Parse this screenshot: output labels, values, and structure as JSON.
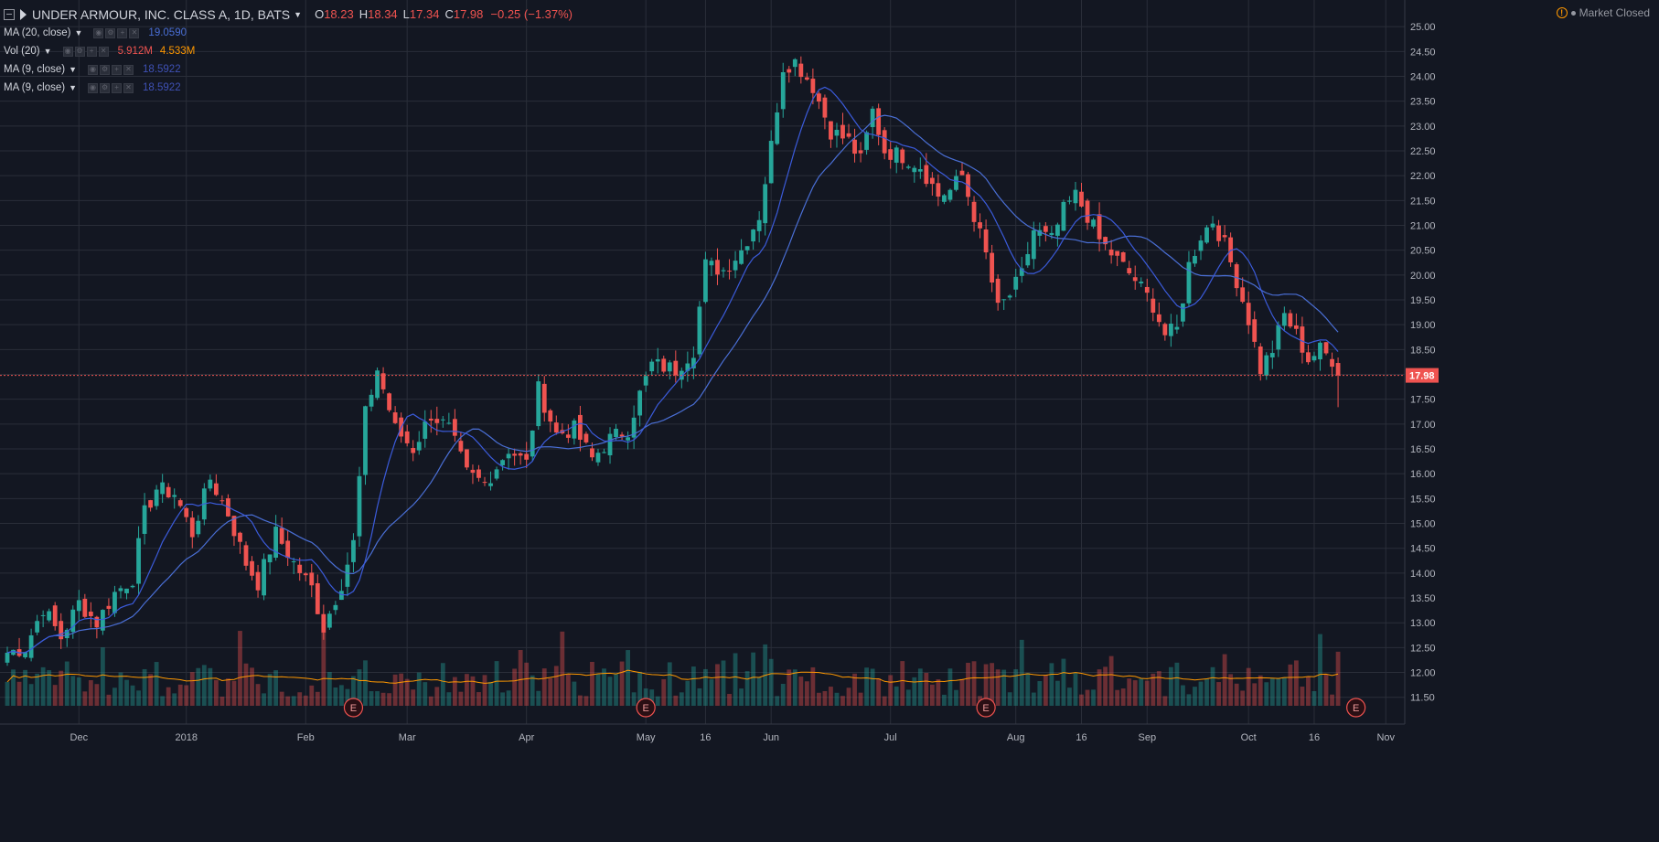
{
  "header": {
    "symbol_title": "UNDER ARMOUR, INC. CLASS A, 1D, BATS",
    "open_label": "O",
    "open": "18.23",
    "high_label": "H",
    "high": "18.34",
    "low_label": "L",
    "low": "17.34",
    "close_label": "C",
    "close": "17.98",
    "change": "−0.25 (−1.37%)",
    "market_status": "Market Closed"
  },
  "indicators": [
    {
      "name": "MA (20, close)",
      "value": "19.0590",
      "color": "#4a6fd6"
    },
    {
      "name": "Vol (20)",
      "value": "5.912M",
      "value2": "4.533M",
      "color": "#ef5350",
      "color2": "#ff9800"
    },
    {
      "name": "MA (9, close)",
      "value": "18.5922",
      "color": "#3f51b5"
    },
    {
      "name": "MA (9, close)",
      "value": "18.5922",
      "color": "#3f51b5"
    }
  ],
  "colors": {
    "background": "#131722",
    "grid": "#2a2e39",
    "up": "#26a69a",
    "down": "#ef5350",
    "ma20": "#4a6fd6",
    "ma9": "#3b5bdb",
    "vol_ma": "#ff9800",
    "axis_text": "#b2b5be"
  },
  "chart_data": {
    "type": "candlestick",
    "title": "UNDER ARMOUR, INC. CLASS A, 1D, BATS",
    "ylim": [
      11.2,
      25.15
    ],
    "y_ticks": [
      "25.00",
      "24.50",
      "24.00",
      "23.50",
      "23.00",
      "22.50",
      "22.00",
      "21.50",
      "21.00",
      "20.50",
      "20.00",
      "19.50",
      "19.00",
      "18.50",
      "18.00",
      "17.50",
      "17.00",
      "16.50",
      "16.00",
      "15.50",
      "15.00",
      "14.50",
      "14.00",
      "13.50",
      "13.00",
      "12.50",
      "12.00",
      "11.50"
    ],
    "x_ticks": [
      {
        "label": "Dec",
        "bar": 12
      },
      {
        "label": "2018",
        "bar": 30
      },
      {
        "label": "Feb",
        "bar": 50
      },
      {
        "label": "Mar",
        "bar": 67
      },
      {
        "label": "Apr",
        "bar": 87
      },
      {
        "label": "May",
        "bar": 107
      },
      {
        "label": "16",
        "bar": 117
      },
      {
        "label": "Jun",
        "bar": 128
      },
      {
        "label": "Jul",
        "bar": 148
      },
      {
        "label": "Aug",
        "bar": 169
      },
      {
        "label": "16",
        "bar": 180
      },
      {
        "label": "Sep",
        "bar": 191
      },
      {
        "label": "Oct",
        "bar": 208
      },
      {
        "label": "16",
        "bar": 219
      },
      {
        "label": "Nov",
        "bar": 231
      }
    ],
    "last_price": "17.98",
    "earnings": [
      {
        "bar": 58,
        "label": "E"
      },
      {
        "bar": 107,
        "label": "E"
      },
      {
        "bar": 164,
        "label": "E"
      },
      {
        "bar": 226,
        "label": "E"
      }
    ],
    "anchors": [
      [
        0,
        12.4
      ],
      [
        3,
        12.5
      ],
      [
        6,
        13.3
      ],
      [
        9,
        12.7
      ],
      [
        12,
        13.4
      ],
      [
        15,
        13.0
      ],
      [
        18,
        13.6
      ],
      [
        21,
        13.9
      ],
      [
        23,
        15.2
      ],
      [
        25,
        15.7
      ],
      [
        28,
        15.6
      ],
      [
        31,
        14.8
      ],
      [
        34,
        15.9
      ],
      [
        37,
        15.2
      ],
      [
        40,
        14.2
      ],
      [
        42,
        13.8
      ],
      [
        45,
        14.8
      ],
      [
        48,
        14.2
      ],
      [
        51,
        13.7
      ],
      [
        53,
        12.9
      ],
      [
        56,
        13.8
      ],
      [
        58,
        14.6
      ],
      [
        60,
        17.2
      ],
      [
        62,
        18.1
      ],
      [
        65,
        16.9
      ],
      [
        68,
        16.5
      ],
      [
        71,
        17.2
      ],
      [
        74,
        16.9
      ],
      [
        77,
        16.0
      ],
      [
        80,
        15.8
      ],
      [
        84,
        16.5
      ],
      [
        87,
        16.2
      ],
      [
        89,
        17.7
      ],
      [
        92,
        16.8
      ],
      [
        95,
        16.9
      ],
      [
        98,
        16.3
      ],
      [
        101,
        16.7
      ],
      [
        104,
        16.9
      ],
      [
        106,
        17.6
      ],
      [
        108,
        18.2
      ],
      [
        112,
        18.1
      ],
      [
        115,
        18.5
      ],
      [
        117,
        20.2
      ],
      [
        120,
        20.1
      ],
      [
        123,
        20.5
      ],
      [
        126,
        21.2
      ],
      [
        128,
        22.6
      ],
      [
        130,
        24.2
      ],
      [
        132,
        24.3
      ],
      [
        135,
        23.8
      ],
      [
        138,
        22.9
      ],
      [
        141,
        22.7
      ],
      [
        143,
        22.3
      ],
      [
        145,
        23.3
      ],
      [
        147,
        22.5
      ],
      [
        150,
        22.4
      ],
      [
        153,
        22.2
      ],
      [
        156,
        21.6
      ],
      [
        158,
        21.7
      ],
      [
        160,
        22.0
      ],
      [
        162,
        21.2
      ],
      [
        164,
        20.4
      ],
      [
        166,
        19.3
      ],
      [
        168,
        19.6
      ],
      [
        170,
        20.0
      ],
      [
        172,
        20.9
      ],
      [
        175,
        20.7
      ],
      [
        177,
        21.3
      ],
      [
        179,
        21.6
      ],
      [
        181,
        21.2
      ],
      [
        183,
        20.7
      ],
      [
        186,
        20.3
      ],
      [
        189,
        19.9
      ],
      [
        192,
        19.4
      ],
      [
        194,
        18.8
      ],
      [
        196,
        18.9
      ],
      [
        198,
        20.2
      ],
      [
        200,
        20.8
      ],
      [
        202,
        21.1
      ],
      [
        204,
        20.6
      ],
      [
        206,
        19.9
      ],
      [
        208,
        19.1
      ],
      [
        210,
        18.1
      ],
      [
        212,
        18.5
      ],
      [
        214,
        19.2
      ],
      [
        216,
        18.8
      ],
      [
        218,
        18.3
      ],
      [
        220,
        18.5
      ],
      [
        222,
        18.3
      ],
      [
        223,
        17.98
      ]
    ],
    "final_bar": {
      "bar": 223,
      "open": 18.23,
      "high": 18.34,
      "low": 17.34,
      "close": 17.98,
      "volume": 5.912
    }
  }
}
